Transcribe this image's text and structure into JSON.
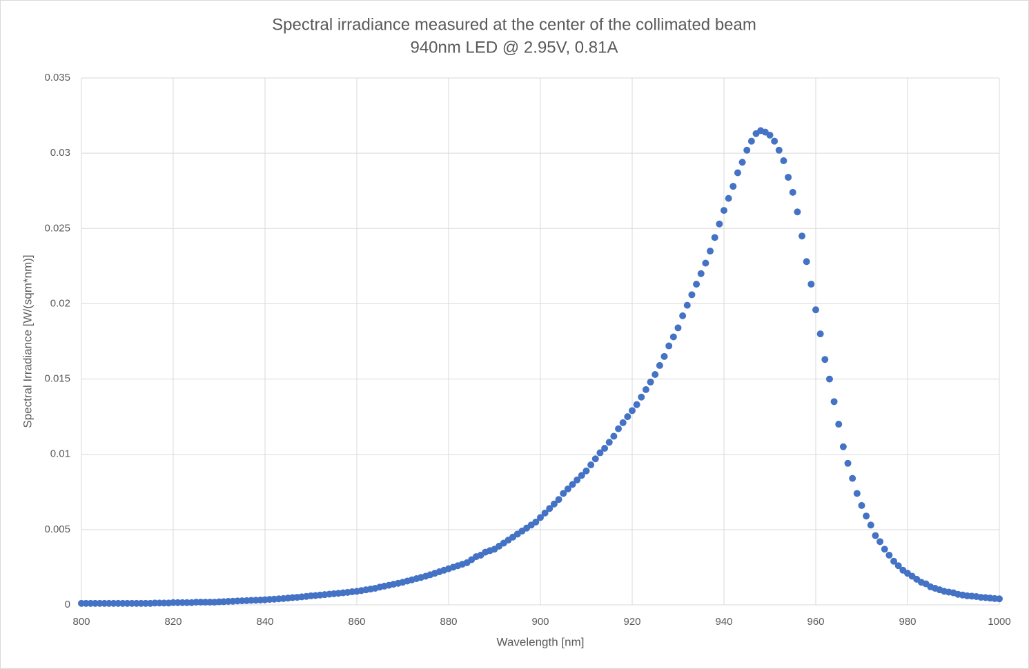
{
  "chart_data": {
    "type": "scatter",
    "title": "Spectral irradiance measured at the center of the collimated beam",
    "subtitle": "940nm LED @ 2.95V, 0.81A",
    "x_label": "Wavelength [nm]",
    "y_label": "Spectral Irradiance [W/(sqm*nm)]",
    "xlim": [
      800,
      1000
    ],
    "xticks": [
      800,
      820,
      840,
      860,
      880,
      900,
      920,
      940,
      960,
      980,
      1000
    ],
    "ylim": [
      0,
      0.035
    ],
    "yticks": [
      0,
      0.005,
      0.01,
      0.015,
      0.02,
      0.025,
      0.03,
      0.035
    ],
    "grid": true,
    "series": [
      {
        "color": "#4472c4",
        "x": [
          800,
          801,
          802,
          803,
          804,
          805,
          806,
          807,
          808,
          809,
          810,
          811,
          812,
          813,
          814,
          815,
          816,
          817,
          818,
          819,
          820,
          821,
          822,
          823,
          824,
          825,
          826,
          827,
          828,
          829,
          830,
          831,
          832,
          833,
          834,
          835,
          836,
          837,
          838,
          839,
          840,
          841,
          842,
          843,
          844,
          845,
          846,
          847,
          848,
          849,
          850,
          851,
          852,
          853,
          854,
          855,
          856,
          857,
          858,
          859,
          860,
          861,
          862,
          863,
          864,
          865,
          866,
          867,
          868,
          869,
          870,
          871,
          872,
          873,
          874,
          875,
          876,
          877,
          878,
          879,
          880,
          881,
          882,
          883,
          884,
          885,
          886,
          887,
          888,
          889,
          890,
          891,
          892,
          893,
          894,
          895,
          896,
          897,
          898,
          899,
          900,
          901,
          902,
          903,
          904,
          905,
          906,
          907,
          908,
          909,
          910,
          911,
          912,
          913,
          914,
          915,
          916,
          917,
          918,
          919,
          920,
          921,
          922,
          923,
          924,
          925,
          926,
          927,
          928,
          929,
          930,
          931,
          932,
          933,
          934,
          935,
          936,
          937,
          938,
          939,
          940,
          941,
          942,
          943,
          944,
          945,
          946,
          947,
          948,
          949,
          950,
          951,
          952,
          953,
          954,
          955,
          956,
          957,
          958,
          959,
          960,
          961,
          962,
          963,
          964,
          965,
          966,
          967,
          968,
          969,
          970,
          971,
          972,
          973,
          974,
          975,
          976,
          977,
          978,
          979,
          980,
          981,
          982,
          983,
          984,
          985,
          986,
          987,
          988,
          989,
          990,
          991,
          992,
          993,
          994,
          995,
          996,
          997,
          998,
          999,
          1000
        ],
        "values": [
          0.0001,
          0.0001,
          0.0001,
          0.0001,
          0.0001,
          0.0001,
          0.0001,
          0.0001,
          0.0001,
          0.0001,
          0.0001,
          0.0001,
          0.0001,
          0.0001,
          0.0001,
          0.0001,
          0.00012,
          0.00012,
          0.00012,
          0.00012,
          0.00015,
          0.00015,
          0.00015,
          0.00015,
          0.00015,
          0.00018,
          0.00018,
          0.00018,
          0.00018,
          0.00018,
          0.0002,
          0.00021,
          0.00023,
          0.00024,
          0.00026,
          0.00027,
          0.00028,
          0.0003,
          0.00031,
          0.00032,
          0.00034,
          0.00036,
          0.00038,
          0.0004,
          0.00042,
          0.00045,
          0.00048,
          0.0005,
          0.00053,
          0.00056,
          0.0006,
          0.00062,
          0.00065,
          0.00068,
          0.00071,
          0.00074,
          0.00077,
          0.0008,
          0.00083,
          0.00087,
          0.0009,
          0.00095,
          0.001,
          0.00105,
          0.0011,
          0.00118,
          0.00124,
          0.0013,
          0.00137,
          0.00143,
          0.0015,
          0.00158,
          0.00166,
          0.00174,
          0.00182,
          0.0019,
          0.002,
          0.0021,
          0.0022,
          0.0023,
          0.0024,
          0.0025,
          0.0026,
          0.0027,
          0.0028,
          0.003,
          0.0032,
          0.0033,
          0.0035,
          0.0036,
          0.0037,
          0.0039,
          0.0041,
          0.0043,
          0.0045,
          0.0047,
          0.0049,
          0.0051,
          0.0053,
          0.0055,
          0.0058,
          0.0061,
          0.0064,
          0.0067,
          0.007,
          0.0074,
          0.0077,
          0.008,
          0.0083,
          0.0086,
          0.0089,
          0.0093,
          0.0097,
          0.0101,
          0.0104,
          0.0108,
          0.0112,
          0.0117,
          0.0121,
          0.0125,
          0.0129,
          0.0133,
          0.0138,
          0.0143,
          0.0148,
          0.0153,
          0.0159,
          0.0165,
          0.0172,
          0.0178,
          0.0184,
          0.0192,
          0.0199,
          0.0206,
          0.0213,
          0.022,
          0.0227,
          0.0235,
          0.0244,
          0.0253,
          0.0262,
          0.027,
          0.0278,
          0.0287,
          0.0294,
          0.0302,
          0.0308,
          0.0313,
          0.0315,
          0.0314,
          0.0312,
          0.0308,
          0.0302,
          0.0295,
          0.0284,
          0.0274,
          0.0261,
          0.0245,
          0.0228,
          0.0213,
          0.0196,
          0.018,
          0.0163,
          0.015,
          0.0135,
          0.012,
          0.0105,
          0.0094,
          0.0084,
          0.0074,
          0.0066,
          0.0059,
          0.0053,
          0.0046,
          0.0042,
          0.0037,
          0.0033,
          0.0029,
          0.0026,
          0.0023,
          0.0021,
          0.0019,
          0.0017,
          0.0015,
          0.0014,
          0.0012,
          0.0011,
          0.001,
          0.0009,
          0.00085,
          0.0008,
          0.0007,
          0.00065,
          0.0006,
          0.00058,
          0.00055,
          0.0005,
          0.00048,
          0.00045,
          0.00042,
          0.0004
        ]
      }
    ]
  }
}
